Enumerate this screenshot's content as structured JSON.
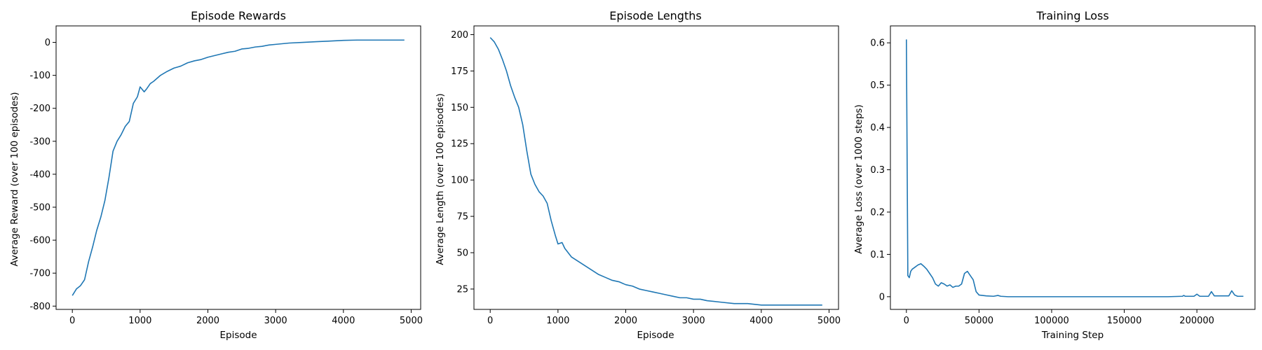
{
  "chart_data": [
    {
      "type": "line",
      "title": "Episode Rewards",
      "xlabel": "Episode",
      "ylabel": "Average Reward (over 100 episodes)",
      "xlim": [
        -240,
        5140
      ],
      "ylim": [
        -810,
        50
      ],
      "xticks": [
        0,
        1000,
        2000,
        3000,
        4000,
        5000
      ],
      "yticks": [
        -800,
        -700,
        -600,
        -500,
        -400,
        -300,
        -200,
        -100,
        0
      ],
      "series": [
        {
          "color": "#1f77b4",
          "x": [
            0,
            60,
            120,
            180,
            240,
            300,
            360,
            420,
            480,
            540,
            600,
            660,
            720,
            780,
            840,
            900,
            960,
            1000,
            1060,
            1100,
            1150,
            1200,
            1300,
            1400,
            1500,
            1600,
            1700,
            1800,
            1900,
            2000,
            2100,
            2200,
            2300,
            2400,
            2500,
            2600,
            2700,
            2800,
            2900,
            3000,
            3200,
            3400,
            3600,
            3800,
            4000,
            4200,
            4400,
            4600,
            4800,
            4900
          ],
          "y": [
            -768,
            -748,
            -738,
            -720,
            -665,
            -620,
            -570,
            -530,
            -480,
            -410,
            -330,
            -300,
            -280,
            -255,
            -240,
            -185,
            -165,
            -135,
            -150,
            -140,
            -125,
            -118,
            -100,
            -88,
            -78,
            -72,
            -62,
            -56,
            -52,
            -45,
            -40,
            -35,
            -30,
            -27,
            -20,
            -18,
            -14,
            -12,
            -8,
            -6,
            -2,
            0,
            2,
            4,
            6,
            7,
            7,
            7,
            7,
            7
          ]
        }
      ]
    },
    {
      "type": "line",
      "title": "Episode Lengths",
      "xlabel": "Episode",
      "ylabel": "Average Length (over 100 episodes)",
      "xlim": [
        -240,
        5140
      ],
      "ylim": [
        11,
        206
      ],
      "xticks": [
        0,
        1000,
        2000,
        3000,
        4000,
        5000
      ],
      "yticks": [
        25,
        50,
        75,
        100,
        125,
        150,
        175,
        200
      ],
      "series": [
        {
          "color": "#1f77b4",
          "x": [
            0,
            60,
            120,
            180,
            240,
            300,
            360,
            420,
            480,
            540,
            600,
            660,
            720,
            780,
            840,
            900,
            960,
            1000,
            1060,
            1100,
            1150,
            1200,
            1300,
            1400,
            1500,
            1600,
            1700,
            1800,
            1900,
            2000,
            2100,
            2200,
            2300,
            2400,
            2500,
            2600,
            2700,
            2800,
            2900,
            3000,
            3100,
            3200,
            3400,
            3600,
            3800,
            4000,
            4200,
            4400,
            4600,
            4800,
            4900
          ],
          "y": [
            198,
            195,
            190,
            183,
            175,
            165,
            157,
            150,
            138,
            120,
            104,
            97,
            92,
            89,
            84,
            72,
            62,
            56,
            57,
            53,
            50,
            47,
            44,
            41,
            38,
            35,
            33,
            31,
            30,
            28,
            27,
            25,
            24,
            23,
            22,
            21,
            20,
            19,
            19,
            18,
            18,
            17,
            16,
            15,
            15,
            14,
            14,
            14,
            14,
            14,
            14
          ]
        }
      ]
    },
    {
      "type": "line",
      "title": "Training Loss",
      "xlabel": "Training Step",
      "ylabel": "Average Loss (over 1000 steps)",
      "xlim": [
        -11000,
        240000
      ],
      "ylim": [
        -0.03,
        0.64
      ],
      "xticks": [
        0,
        50000,
        100000,
        150000,
        200000
      ],
      "yticks": [
        0.0,
        0.1,
        0.2,
        0.3,
        0.4,
        0.5,
        0.6
      ],
      "series": [
        {
          "color": "#1f77b4",
          "x": [
            0,
            1000,
            2000,
            3000,
            4000,
            6000,
            8000,
            10000,
            12000,
            14000,
            16000,
            18000,
            20000,
            22000,
            24000,
            26000,
            28000,
            30000,
            32000,
            34000,
            36000,
            38000,
            40000,
            42000,
            44000,
            46000,
            48000,
            50000,
            55000,
            60000,
            63000,
            65000,
            70000,
            80000,
            100000,
            120000,
            150000,
            180000,
            190000,
            191000,
            192000,
            198000,
            200000,
            202000,
            208000,
            210000,
            212000,
            218000,
            222000,
            224000,
            226000,
            228000,
            232000
          ],
          "y": [
            0.608,
            0.05,
            0.045,
            0.06,
            0.065,
            0.07,
            0.075,
            0.078,
            0.072,
            0.065,
            0.055,
            0.045,
            0.03,
            0.025,
            0.033,
            0.03,
            0.025,
            0.028,
            0.022,
            0.025,
            0.025,
            0.03,
            0.055,
            0.06,
            0.05,
            0.04,
            0.012,
            0.004,
            0.002,
            0.001,
            0.003,
            0.001,
            0.0,
            0.0,
            0.0,
            0.0,
            0.0,
            0.0,
            0.001,
            0.003,
            0.001,
            0.001,
            0.006,
            0.001,
            0.001,
            0.012,
            0.002,
            0.002,
            0.002,
            0.014,
            0.004,
            0.001,
            0.001
          ]
        }
      ]
    }
  ]
}
